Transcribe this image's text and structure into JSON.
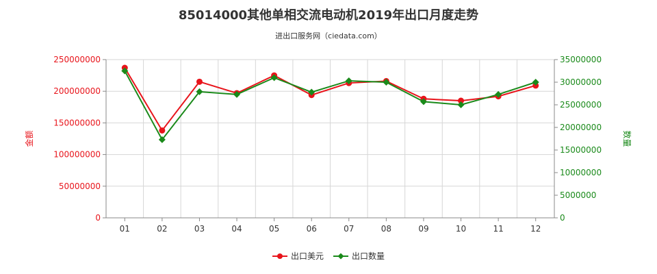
{
  "chart_data": {
    "type": "line",
    "title": "85014000其他单相交流电动机2019年出口月度走势",
    "subtitle": "进出口服务网（ciedata.com）",
    "categories": [
      "01",
      "02",
      "03",
      "04",
      "05",
      "06",
      "07",
      "08",
      "09",
      "10",
      "11",
      "12"
    ],
    "y_left": {
      "label": "金额",
      "min": 0,
      "max": 250000000,
      "step": 50000000,
      "color": "#e8141b",
      "ticks": [
        "0",
        "50000000",
        "100000000",
        "150000000",
        "200000000",
        "250000000"
      ]
    },
    "y_right": {
      "label": "数量",
      "min": 0,
      "max": 35000000,
      "step": 5000000,
      "color": "#1a8a1a",
      "ticks": [
        "0",
        "5000000",
        "10000000",
        "15000000",
        "20000000",
        "25000000",
        "30000000",
        "35000000"
      ]
    },
    "series": [
      {
        "name": "出口美元",
        "axis": "left",
        "color": "#e8141b",
        "marker": "circle",
        "values": [
          237000000,
          138000000,
          215000000,
          197000000,
          225000000,
          194000000,
          213000000,
          216000000,
          188000000,
          185000000,
          192000000,
          209000000
        ]
      },
      {
        "name": "出口数量",
        "axis": "right",
        "color": "#1a8a1a",
        "marker": "diamond",
        "values": [
          32500000,
          17300000,
          27900000,
          27300000,
          31000000,
          27800000,
          30300000,
          30000000,
          25700000,
          25000000,
          27300000,
          30000000
        ]
      }
    ],
    "grid": true,
    "legend_position": "bottom-center"
  }
}
